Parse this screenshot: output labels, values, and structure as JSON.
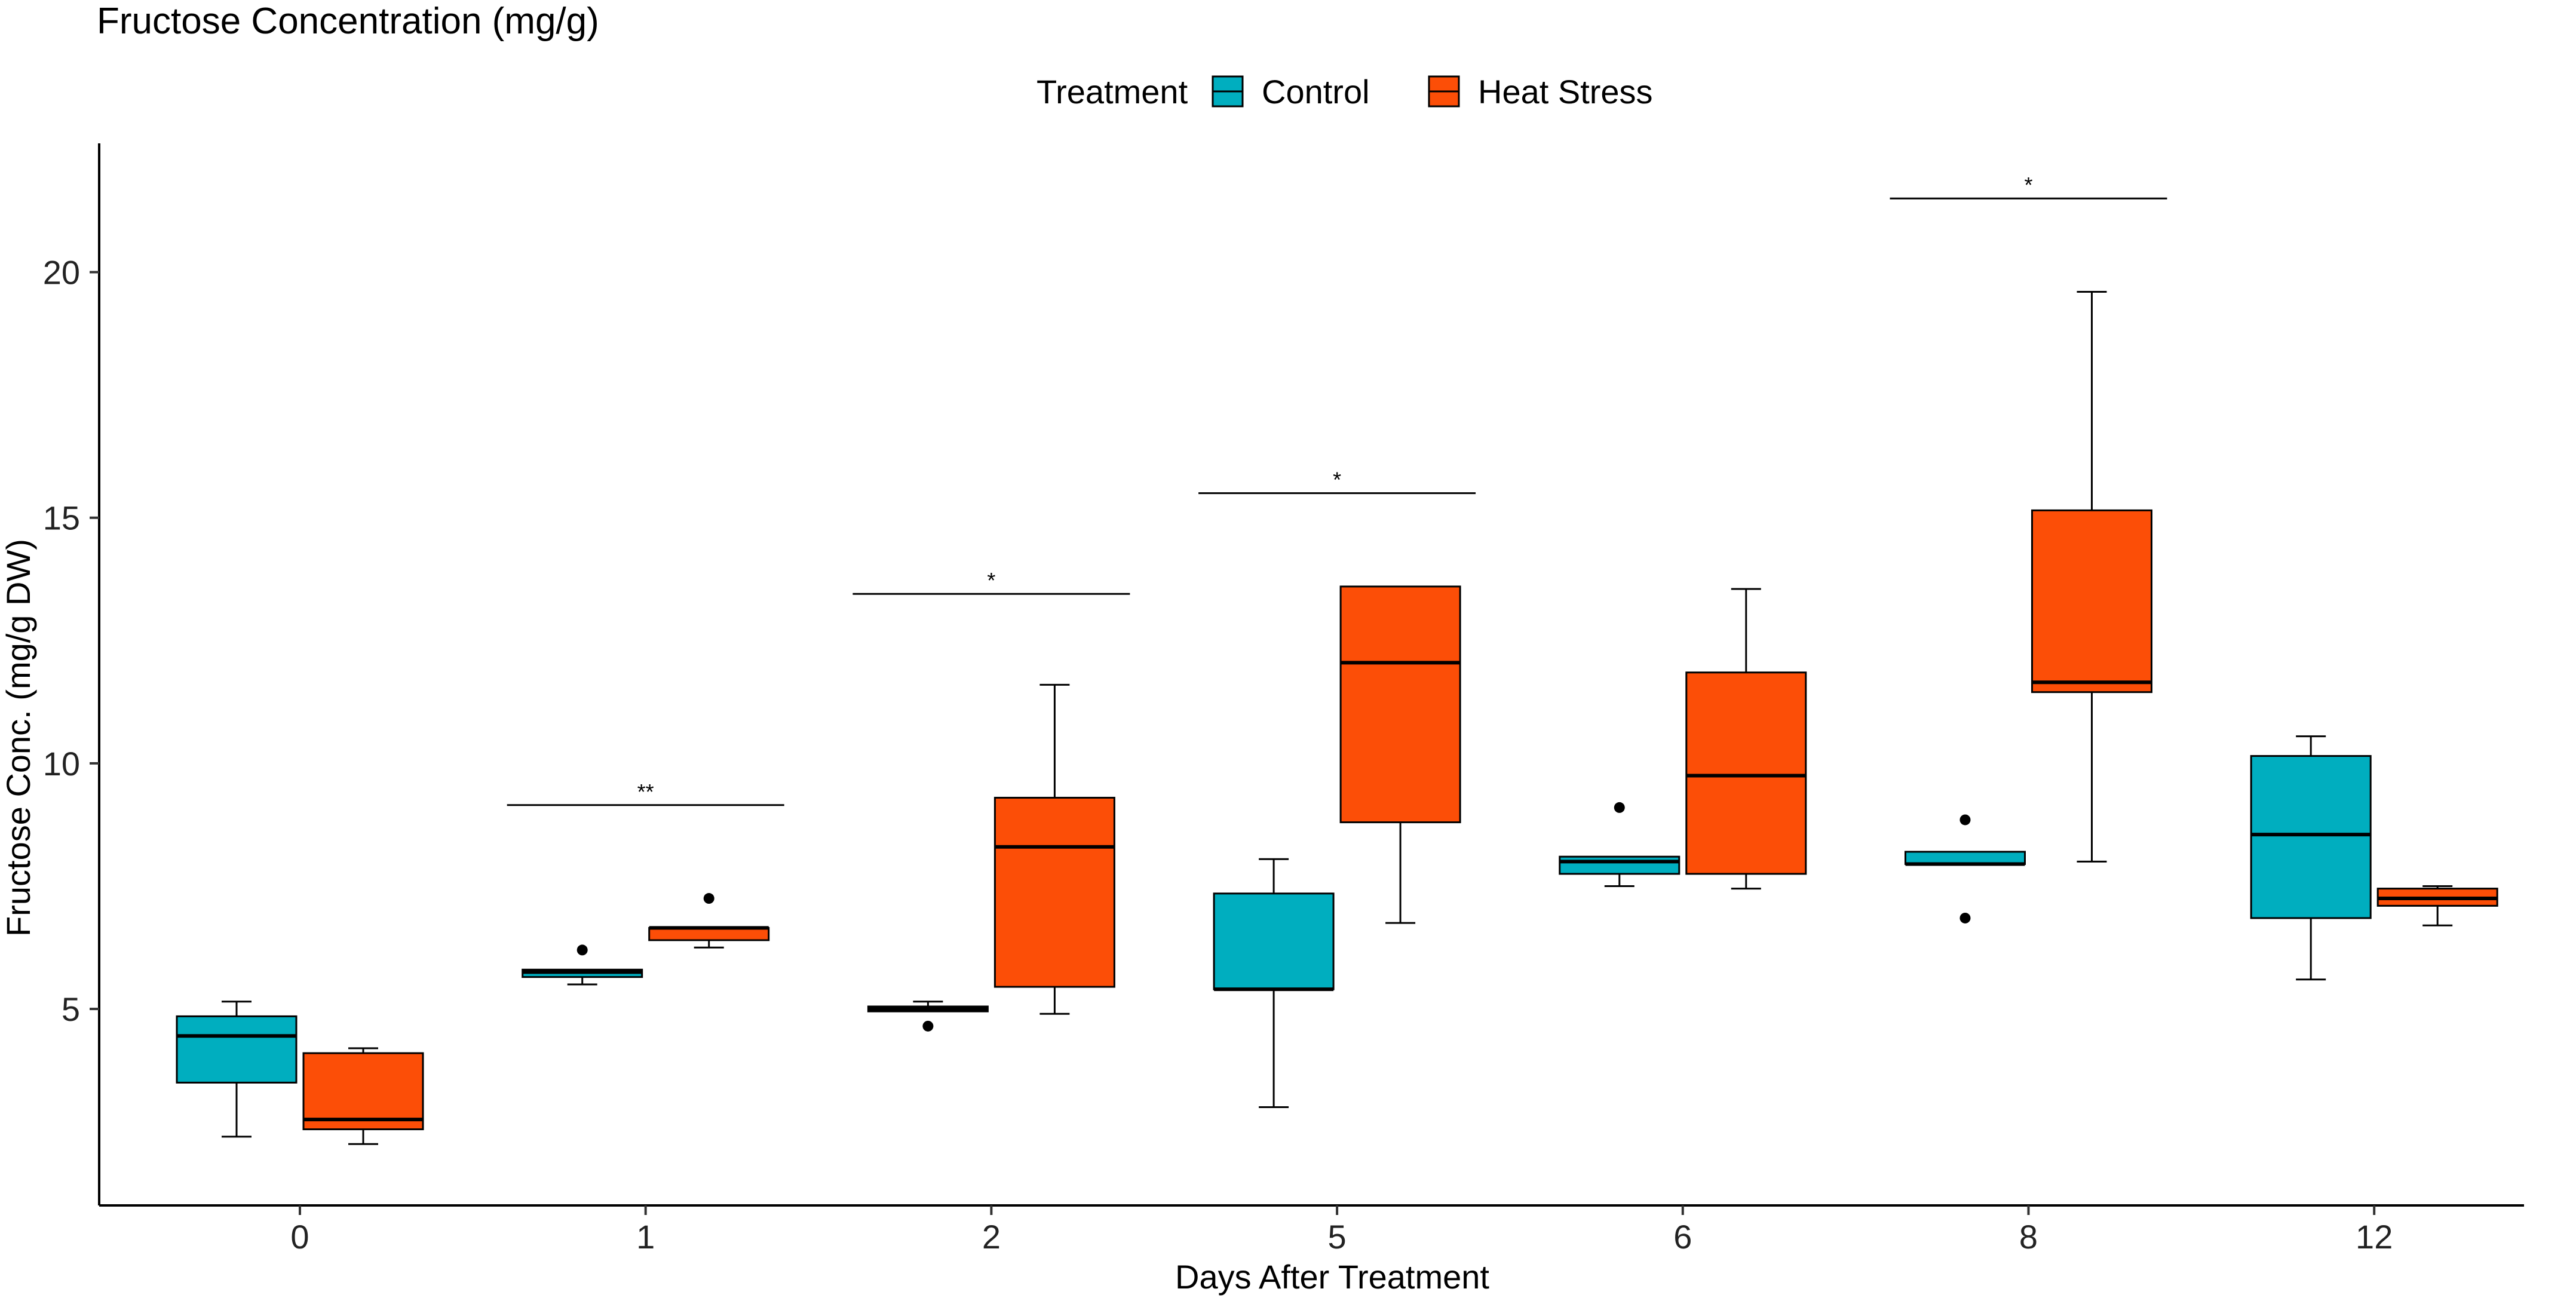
{
  "chart_data": {
    "type": "boxplot",
    "title": "Fructose Concentration (mg/g)",
    "xlabel": "Days After Treatment",
    "ylabel": "Fructose Conc. (mg/g DW)",
    "ylim": [
      1.0,
      22.5
    ],
    "yticks": [
      5,
      10,
      15,
      20
    ],
    "categories": [
      "0",
      "1",
      "2",
      "5",
      "6",
      "8",
      "12"
    ],
    "legend": {
      "title": "Treatment",
      "position": "top-center",
      "entries": [
        {
          "name": "Control",
          "color": "#00AEBF"
        },
        {
          "name": "Heat Stress",
          "color": "#FC4E07"
        }
      ]
    },
    "series": [
      {
        "name": "Control",
        "color": "#00AEBF",
        "boxes": [
          {
            "category": "0",
            "min": 2.4,
            "q1": 3.5,
            "median": 4.45,
            "q3": 4.85,
            "max": 5.15,
            "outliers": []
          },
          {
            "category": "1",
            "min": 5.5,
            "q1": 5.65,
            "median": 5.75,
            "q3": 5.8,
            "max": 5.8,
            "outliers": [
              6.2
            ]
          },
          {
            "category": "2",
            "min": 4.95,
            "q1": 4.95,
            "median": 5.0,
            "q3": 5.05,
            "max": 5.15,
            "outliers": [
              4.65
            ]
          },
          {
            "category": "5",
            "min": 3.0,
            "q1": 5.4,
            "median": 5.4,
            "q3": 7.35,
            "max": 8.05,
            "outliers": []
          },
          {
            "category": "6",
            "min": 7.5,
            "q1": 7.75,
            "median": 8.0,
            "q3": 8.1,
            "max": 8.1,
            "outliers": [
              9.1
            ]
          },
          {
            "category": "8",
            "min": 7.95,
            "q1": 7.95,
            "median": 7.95,
            "q3": 8.2,
            "max": 8.2,
            "outliers": [
              8.85,
              6.85
            ]
          },
          {
            "category": "12",
            "min": 5.6,
            "q1": 6.85,
            "median": 8.55,
            "q3": 10.15,
            "max": 10.55,
            "outliers": []
          }
        ]
      },
      {
        "name": "Heat Stress",
        "color": "#FC4E07",
        "boxes": [
          {
            "category": "0",
            "min": 2.25,
            "q1": 2.55,
            "median": 2.75,
            "q3": 4.1,
            "max": 4.2,
            "outliers": []
          },
          {
            "category": "1",
            "min": 6.25,
            "q1": 6.4,
            "median": 6.65,
            "q3": 6.65,
            "max": 6.65,
            "outliers": [
              7.25
            ]
          },
          {
            "category": "2",
            "min": 4.9,
            "q1": 5.45,
            "median": 8.3,
            "q3": 9.3,
            "max": 11.6,
            "outliers": []
          },
          {
            "category": "5",
            "min": 6.75,
            "q1": 8.8,
            "median": 12.05,
            "q3": 13.6,
            "max": 13.6,
            "outliers": []
          },
          {
            "category": "6",
            "min": 7.45,
            "q1": 7.75,
            "median": 9.75,
            "q3": 11.85,
            "max": 13.55,
            "outliers": []
          },
          {
            "category": "8",
            "min": 8.0,
            "q1": 11.45,
            "median": 11.65,
            "q3": 15.15,
            "max": 19.6,
            "outliers": []
          },
          {
            "category": "12",
            "min": 6.7,
            "q1": 7.1,
            "median": 7.25,
            "q3": 7.45,
            "max": 7.5,
            "outliers": []
          }
        ]
      }
    ],
    "annotations": [
      {
        "category": "1",
        "label": "**",
        "y": 9.15
      },
      {
        "category": "2",
        "label": "*",
        "y": 13.45
      },
      {
        "category": "5",
        "label": "*",
        "y": 15.5
      },
      {
        "category": "8",
        "label": "*",
        "y": 21.5
      }
    ]
  }
}
